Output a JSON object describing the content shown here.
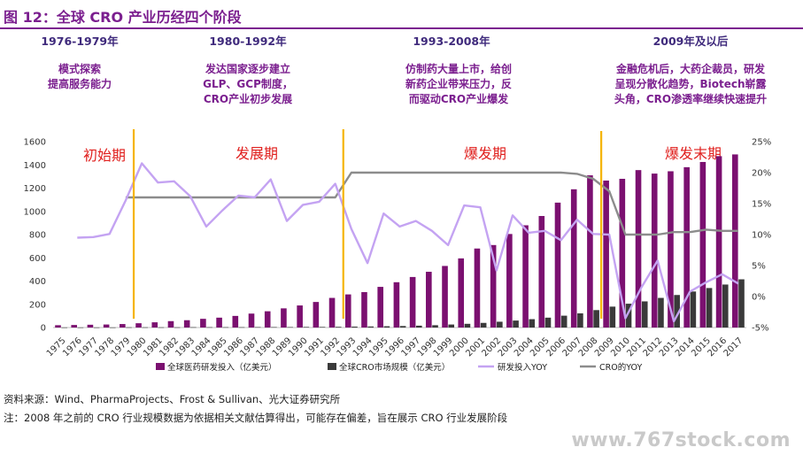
{
  "figure_title": "图 12：全球 CRO 产业历经四个阶段",
  "phases": [
    {
      "years": "1976-1979年",
      "lines": [
        "模式探索",
        "提高服务能力"
      ]
    },
    {
      "years": "1980-1992年",
      "lines": [
        "发达国家逐步建立",
        "GLP、GCP制度，",
        "CRO产业初步发展"
      ]
    },
    {
      "years": "1993-2008年",
      "lines": [
        "仿制药大量上市，给创",
        "新药企业带来压力，反",
        "而驱动CRO产业爆发"
      ]
    },
    {
      "years": "2009年及以后",
      "lines": [
        "金融危机后，大药企裁员，研发",
        "呈现分散化趋势，Biotech崭露",
        "头角，CRO渗透率继续快速提升"
      ]
    }
  ],
  "stage_labels": [
    "初始期",
    "发展期",
    "爆发期",
    "爆发末期"
  ],
  "source": "资料来源：Wind、PharmaProjects、Frost & Sullivan、光大证券研究所",
  "note": "注：2008 年之前的 CRO 行业规模数据为依据相关文献估算得出，可能存在偏差，旨在展示 CRO 行业发展阶段",
  "watermark": "www.767stock.com",
  "colors": {
    "title": "#7b1f8f",
    "rd_bar": "#7b1070",
    "cro_bar": "#3a3a3a",
    "rd_yoy": "#c4a3f2",
    "cro_yoy": "#8c8c8c",
    "divider": "#f5b400",
    "stage": "#e0201e"
  },
  "chart_data": {
    "type": "bar",
    "categories": [
      "1975",
      "1976",
      "1977",
      "1978",
      "1979",
      "1980",
      "1981",
      "1982",
      "1983",
      "1984",
      "1985",
      "1986",
      "1987",
      "1988",
      "1989",
      "1990",
      "1991",
      "1992",
      "1993",
      "1994",
      "1995",
      "1996",
      "1997",
      "1998",
      "1999",
      "2000",
      "2001",
      "2002",
      "2003",
      "2004",
      "2005",
      "2006",
      "2007",
      "2008",
      "2009",
      "2010",
      "2011",
      "2012",
      "2013",
      "2014",
      "2015",
      "2016",
      "2017"
    ],
    "left_axis": {
      "min": 0,
      "max": 1600,
      "ticks": [
        0,
        200,
        400,
        600,
        800,
        1000,
        1200,
        1400,
        1600
      ]
    },
    "right_axis": {
      "min": -5,
      "max": 25,
      "ticks": [
        "-5%",
        "0%",
        "5%",
        "10%",
        "15%",
        "20%",
        "25%"
      ]
    },
    "series": [
      {
        "name": "全球医药研发投入（亿美元）",
        "type": "bar",
        "axis": "left",
        "values": [
          20,
          22,
          24,
          26,
          30,
          37,
          45,
          55,
          63,
          75,
          85,
          100,
          120,
          140,
          165,
          190,
          220,
          255,
          285,
          305,
          350,
          390,
          435,
          480,
          530,
          595,
          680,
          710,
          805,
          880,
          960,
          1075,
          1190,
          1310,
          1265,
          1280,
          1355,
          1325,
          1345,
          1380,
          1425,
          1475,
          1490
        ]
      },
      {
        "name": "全球CRO市场规模（亿美元）",
        "type": "bar",
        "axis": "left",
        "values": [
          1,
          1,
          1,
          1,
          2,
          2,
          2,
          2,
          3,
          3,
          3,
          3,
          4,
          4,
          4,
          5,
          5,
          6,
          8,
          9,
          11,
          13,
          16,
          20,
          26,
          32,
          40,
          50,
          60,
          72,
          85,
          102,
          122,
          150,
          180,
          205,
          225,
          255,
          280,
          310,
          340,
          370,
          415
        ]
      },
      {
        "name": "研发投入YOY",
        "type": "line",
        "axis": "right",
        "values": [
          null,
          9.5,
          9.6,
          10.1,
          15.5,
          21.5,
          18.4,
          18.6,
          16.2,
          11.3,
          13.9,
          16.3,
          16.0,
          18.9,
          12.2,
          14.8,
          15.3,
          18.2,
          10.9,
          5.4,
          13.4,
          11.3,
          12.2,
          10.6,
          8.3,
          14.7,
          14.4,
          4.2,
          13.1,
          10.3,
          10.6,
          9.1,
          12.4,
          10.1,
          10.0,
          -3.5,
          1.5,
          5.8,
          -4.0,
          0.8,
          2.3,
          3.6,
          2.1
        ]
      },
      {
        "name": "CRO的YOY",
        "type": "line",
        "axis": "right",
        "values": [
          null,
          null,
          null,
          null,
          16.0,
          16.0,
          16.0,
          16.0,
          16.0,
          16.0,
          16.0,
          16.0,
          16.0,
          16.0,
          16.0,
          16.0,
          16.0,
          16.0,
          20.0,
          20.0,
          20.0,
          20.0,
          20.0,
          20.0,
          20.0,
          20.0,
          20.0,
          20.0,
          20.0,
          20.0,
          20.0,
          20.0,
          19.8,
          19.0,
          17.0,
          10.0,
          10.0,
          10.0,
          10.4,
          10.4,
          10.8,
          10.6,
          10.6
        ]
      }
    ],
    "stage_dividers_after": [
      "1979",
      "1992",
      "2008"
    ],
    "legend_position": "bottom"
  }
}
